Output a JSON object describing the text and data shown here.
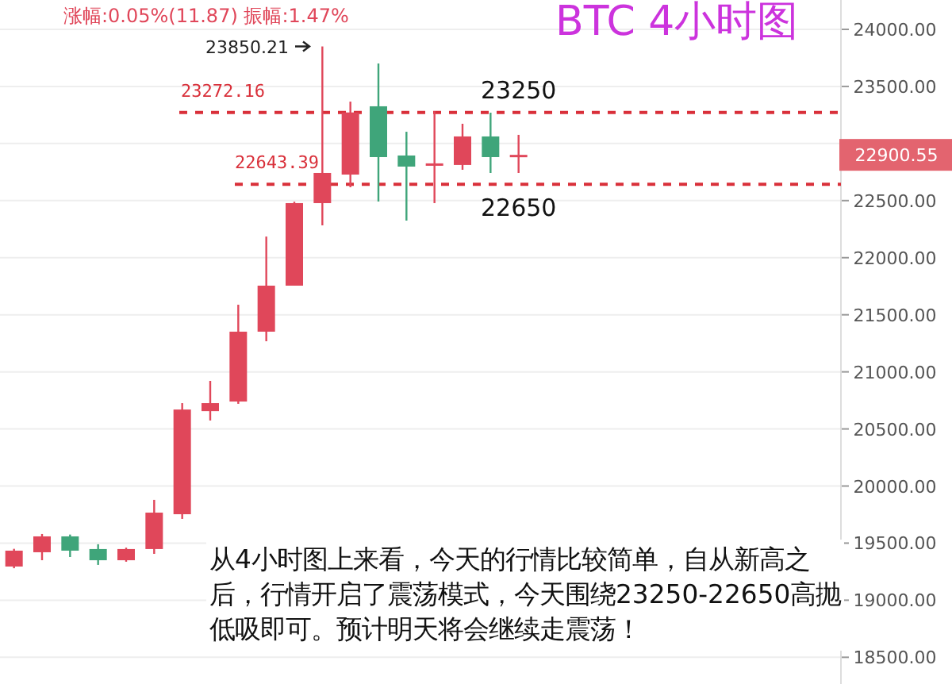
{
  "chart_data": {
    "type": "candlestick",
    "title": "BTC 4小时图",
    "categories": [
      null,
      null,
      null,
      null,
      null,
      null,
      null,
      null,
      null,
      null,
      null,
      null,
      null,
      null,
      null,
      null,
      null,
      null,
      null,
      null,
      null,
      null,
      null,
      null,
      null,
      null,
      null,
      null,
      null,
      null
    ],
    "ohlc": [
      [
        19295,
        19450,
        19280,
        19434
      ],
      [
        19420,
        19580,
        19350,
        19559
      ],
      [
        19559,
        19575,
        19378,
        19434
      ],
      [
        19448,
        19490,
        19309,
        19350
      ],
      [
        19350,
        19460,
        19337,
        19448
      ],
      [
        19448,
        19879,
        19406,
        19767
      ],
      [
        19753,
        20726,
        19712,
        20670
      ],
      [
        20656,
        20921,
        20574,
        20726
      ],
      [
        20740,
        21588,
        20720,
        21352
      ],
      [
        21352,
        22185,
        21268,
        21755
      ],
      [
        21755,
        22490,
        21755,
        22478
      ],
      [
        22478,
        23850.21,
        22283,
        22742
      ],
      [
        22728,
        23367,
        22617,
        23272
      ],
      [
        23326,
        23701,
        22492,
        22881
      ],
      [
        22895,
        23103,
        22325,
        22798
      ],
      [
        22812,
        23283,
        22478,
        22826
      ],
      [
        22812,
        23173,
        22770,
        23062
      ],
      [
        23062,
        23270,
        22742,
        22881
      ],
      [
        22890,
        23076,
        22742,
        22900.55
      ],
      null,
      null,
      null,
      null,
      null,
      null,
      null,
      null,
      null,
      null,
      null
    ],
    "colors": [
      "#e0475a",
      "#e0475a",
      "#3fa57a",
      "#3fa57a",
      "#e0475a",
      "#e0475a",
      "#e0475a",
      "#e0475a",
      "#e0475a",
      "#e0475a",
      "#e0475a",
      "#e0475a",
      "#e0475a",
      "#3fa57a",
      "#3fa57a",
      "#e0475a",
      "#e0475a",
      "#3fa57a",
      "#e0475a",
      null,
      null,
      null,
      null,
      null,
      null,
      null,
      null,
      null,
      null,
      null
    ],
    "ylim": [
      18266,
      24257
    ],
    "yticks": [
      {
        "value": 18500,
        "label": "18500.00"
      },
      {
        "value": 19000,
        "label": "19000.00"
      },
      {
        "value": 19500,
        "label": "19500.00"
      },
      {
        "value": 20000,
        "label": "20000.00"
      },
      {
        "value": 20500,
        "label": "20500.00"
      },
      {
        "value": 21000,
        "label": "21000.00"
      },
      {
        "value": 21500,
        "label": "21500.00"
      },
      {
        "value": 22000,
        "label": "22000.00"
      },
      {
        "value": 22500,
        "label": "22500.00"
      },
      {
        "value": 23000,
        "label": null
      },
      {
        "value": 23500,
        "label": "23500.00"
      },
      {
        "value": 24000,
        "label": "24000.00"
      }
    ],
    "grid": "y",
    "tick_labels": "y",
    "ref_lines": [
      {
        "axis": "y",
        "value": 23272.16,
        "label": "23272.16",
        "color": "#d9303a",
        "line_style": "dashed"
      },
      {
        "axis": "y",
        "value": 22643.39,
        "label": "22643.39",
        "color": "#d9303a",
        "line_style": "dashed"
      }
    ],
    "annotations": [
      "涨幅:0.05%(11.87)  振幅:1.47%",
      "23850.21",
      "23250",
      "22650",
      "22900.55",
      "从4小时图上来看，今天的行情比较简单，自从新高之后，行情开启了震荡模式，今天围绕23250-22650高抛低吸即可。预计明天将会继续走震荡！"
    ]
  }
}
